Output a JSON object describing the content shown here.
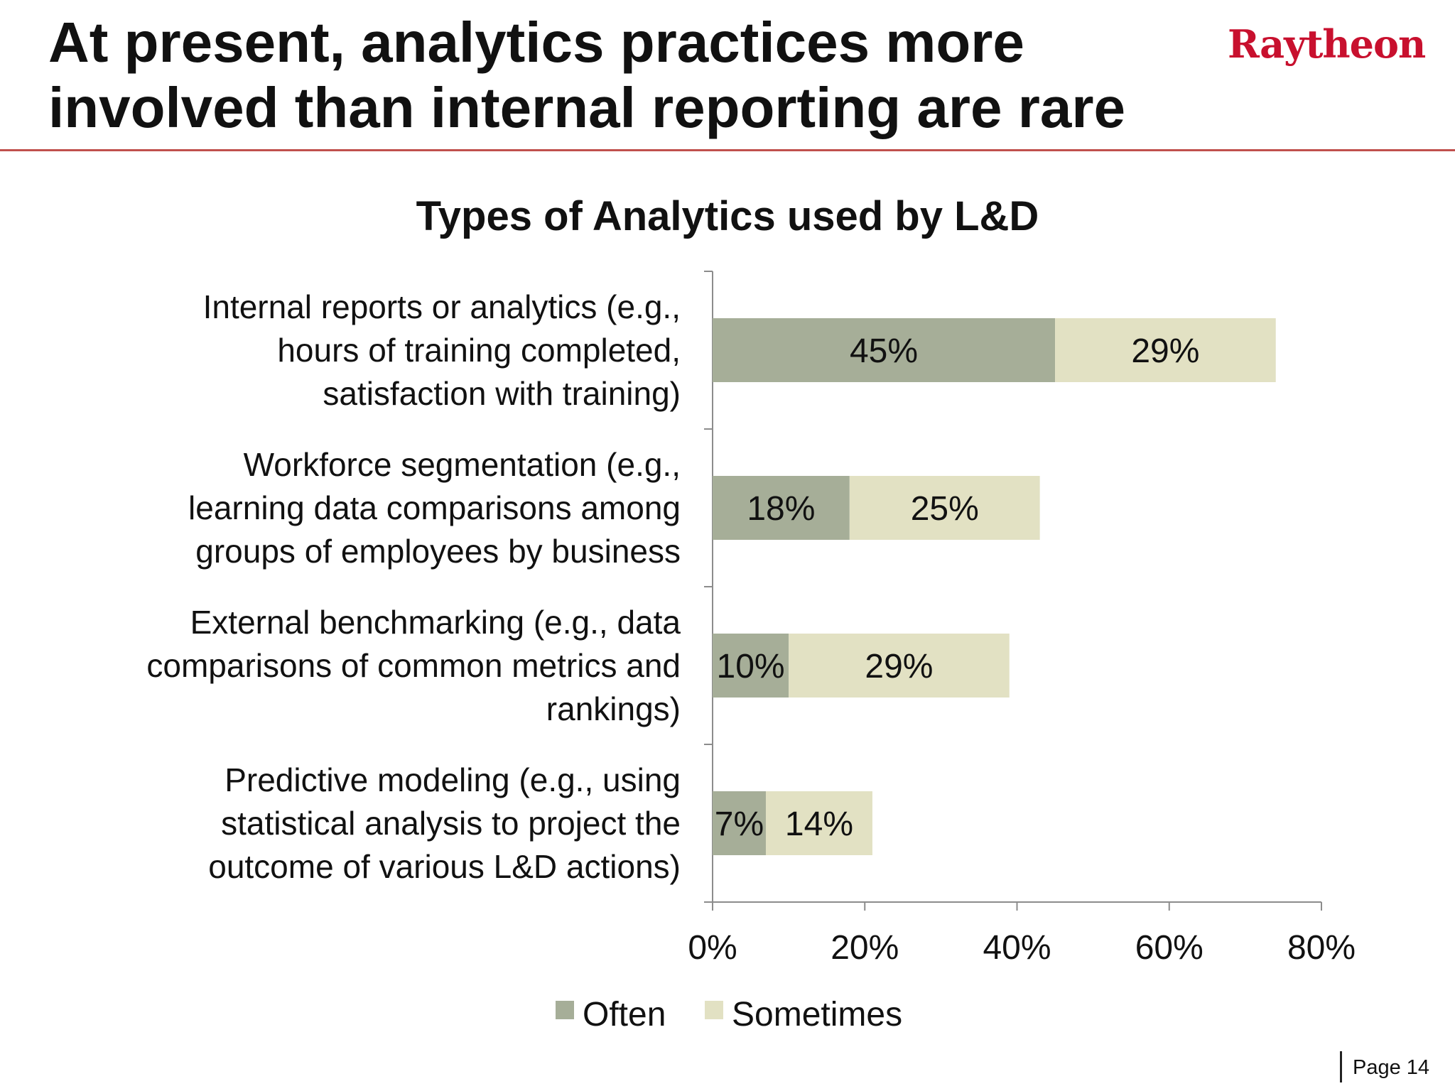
{
  "slide": {
    "title": "At present, analytics practices more involved than internal reporting are rare",
    "logo_text": "Raytheon",
    "page_label": "Page 14"
  },
  "colors": {
    "often": "#a6ae98",
    "sometimes": "#e2e1c3",
    "axis": "#8c8c8c",
    "title_rule": "#c0504d",
    "logo": "#c8102e"
  },
  "chart_data": {
    "type": "bar",
    "orientation": "horizontal",
    "stacked": true,
    "title": "Types of Analytics used by L&D",
    "categories": [
      [
        "Internal reports or analytics (e.g.,",
        "hours of training completed,",
        "satisfaction with training)"
      ],
      [
        "Workforce segmentation (e.g.,",
        "learning data comparisons among",
        "groups of employees by business"
      ],
      [
        "External benchmarking (e.g., data",
        "comparisons of common metrics and",
        "rankings)"
      ],
      [
        "Predictive modeling (e.g., using",
        "statistical analysis to project the",
        "outcome of various L&D actions)"
      ]
    ],
    "series": [
      {
        "name": "Often",
        "values": [
          45,
          18,
          10,
          7
        ],
        "labels": [
          "45%",
          "18%",
          "10%",
          "7%"
        ]
      },
      {
        "name": "Sometimes",
        "values": [
          29,
          25,
          29,
          14
        ],
        "labels": [
          "29%",
          "25%",
          "29%",
          "14%"
        ]
      }
    ],
    "xlim": [
      0,
      80
    ],
    "x_ticks": [
      0,
      20,
      40,
      60,
      80
    ],
    "x_tick_labels": [
      "0%",
      "20%",
      "40%",
      "60%",
      "80%"
    ],
    "grid": false,
    "legend": "bottom"
  }
}
